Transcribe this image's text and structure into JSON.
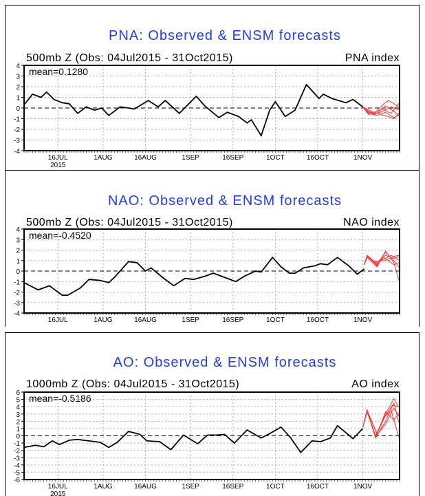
{
  "chart_data": [
    {
      "type": "line",
      "title": "PNA: Observed & ENSM forecasts",
      "subtitle": "500mb Z (Obs: 04Jul2015 - 31Oct2015)",
      "index_label": "PNA index",
      "mean_label": "mean=0.1280",
      "ylim": [
        -4,
        4
      ],
      "yticks": [
        4,
        3,
        2,
        1,
        0,
        -1,
        -2,
        -3,
        -4
      ],
      "x_start": "04Jul2015",
      "xlim_days": [
        0,
        133
      ],
      "xticks": [
        {
          "day": 12,
          "label": "16JUL"
        },
        {
          "day": 28,
          "label": "1AUG"
        },
        {
          "day": 43,
          "label": "16AUG"
        },
        {
          "day": 59,
          "label": "1SEP"
        },
        {
          "day": 74,
          "label": "16SEP"
        },
        {
          "day": 89,
          "label": "1OCT"
        },
        {
          "day": 104,
          "label": "16OCT"
        },
        {
          "day": 120,
          "label": "1NOV"
        }
      ],
      "year_label": "2015",
      "grid": true,
      "observed": [
        [
          0,
          0.3
        ],
        [
          3,
          1.3
        ],
        [
          6,
          1.0
        ],
        [
          8,
          1.5
        ],
        [
          10.6,
          0.8
        ],
        [
          13.5,
          0.5
        ],
        [
          16,
          0.4
        ],
        [
          19,
          -0.5
        ],
        [
          22,
          0.1
        ],
        [
          25,
          -0.2
        ],
        [
          27.5,
          0
        ],
        [
          30,
          -0.7
        ],
        [
          34,
          0.1
        ],
        [
          37,
          0
        ],
        [
          39,
          -0.1
        ],
        [
          44,
          0.7
        ],
        [
          47.5,
          0.1
        ],
        [
          50,
          0.7
        ],
        [
          55,
          -0.5
        ],
        [
          61,
          1.1
        ],
        [
          64,
          0.2
        ],
        [
          69,
          -0.9
        ],
        [
          72,
          -0.4
        ],
        [
          76,
          -0.8
        ],
        [
          79,
          -1.4
        ],
        [
          80.5,
          -1.1
        ],
        [
          84,
          -2.6
        ],
        [
          87,
          -0.2
        ],
        [
          89,
          0.6
        ],
        [
          92.5,
          -0.8
        ],
        [
          96,
          -0.2
        ],
        [
          100,
          2.2
        ],
        [
          104.5,
          0.9
        ],
        [
          106,
          1.3
        ],
        [
          109,
          0.9
        ],
        [
          114,
          0.5
        ],
        [
          116.5,
          0.8
        ],
        [
          120,
          0.1
        ]
      ],
      "ensemble": [
        [
          [
            120,
            0.1
          ],
          [
            122,
            -0.4
          ],
          [
            124,
            -0.6
          ],
          [
            127,
            -0.3
          ],
          [
            130,
            0.1
          ],
          [
            133,
            -0.2
          ]
        ],
        [
          [
            120,
            0.1
          ],
          [
            122,
            -0.3
          ],
          [
            124,
            -0.5
          ],
          [
            127,
            0.3
          ],
          [
            129,
            0.7
          ],
          [
            133,
            0.1
          ]
        ],
        [
          [
            120,
            0.1
          ],
          [
            122,
            -0.5
          ],
          [
            125,
            -0.7
          ],
          [
            128,
            -0.4
          ],
          [
            131,
            -0.9
          ],
          [
            133,
            -0.6
          ]
        ],
        [
          [
            120,
            0.1
          ],
          [
            122,
            -0.4
          ],
          [
            124,
            -0.4
          ],
          [
            127,
            -0.1
          ],
          [
            130,
            -0.5
          ],
          [
            133,
            0.5
          ]
        ],
        [
          [
            120,
            0.1
          ],
          [
            122,
            -0.6
          ],
          [
            125,
            -0.5
          ],
          [
            128,
            0.2
          ],
          [
            131,
            -0.3
          ],
          [
            133,
            -0.8
          ]
        ],
        [
          [
            120,
            0.1
          ],
          [
            123,
            -0.3
          ],
          [
            126,
            -0.6
          ],
          [
            129,
            -0.8
          ],
          [
            131,
            -1.0
          ],
          [
            133,
            -0.4
          ]
        ]
      ]
    },
    {
      "type": "line",
      "title": "NAO: Observed & ENSM forecasts",
      "subtitle": "500mb Z (Obs: 04Jul2015 - 31Oct2015)",
      "index_label": "NAO index",
      "mean_label": "mean=-0.4520",
      "ylim": [
        -4,
        4
      ],
      "yticks": [
        4,
        3,
        2,
        1,
        0,
        -1,
        -2,
        -3,
        -4
      ],
      "x_start": "04Jul2015",
      "xlim_days": [
        0,
        133
      ],
      "xticks": [
        {
          "day": 12,
          "label": "16JUL"
        },
        {
          "day": 28,
          "label": "1AUG"
        },
        {
          "day": 43,
          "label": "16AUG"
        },
        {
          "day": 59,
          "label": "1SEP"
        },
        {
          "day": 74,
          "label": "16SEP"
        },
        {
          "day": 89,
          "label": "1OCT"
        },
        {
          "day": 104,
          "label": "16OCT"
        },
        {
          "day": 120,
          "label": "1NOV"
        }
      ],
      "grid": true,
      "observed": [
        [
          0,
          -1.1
        ],
        [
          5,
          -1.8
        ],
        [
          9,
          -1.4
        ],
        [
          13.5,
          -2.3
        ],
        [
          15.5,
          -2.3
        ],
        [
          20,
          -1.6
        ],
        [
          23,
          -0.8
        ],
        [
          27,
          -0.9
        ],
        [
          30,
          -1.1
        ],
        [
          32,
          -0.6
        ],
        [
          37,
          0.9
        ],
        [
          40,
          0.8
        ],
        [
          43,
          0
        ],
        [
          45,
          0.3
        ],
        [
          49,
          -0.6
        ],
        [
          53,
          -1.4
        ],
        [
          57,
          -0.7
        ],
        [
          60,
          -0.8
        ],
        [
          64,
          -0.5
        ],
        [
          67,
          -0.2
        ],
        [
          70,
          -0.5
        ],
        [
          75,
          -1.0
        ],
        [
          78,
          -0.5
        ],
        [
          82,
          0
        ],
        [
          84,
          -0.1
        ],
        [
          88,
          1.3
        ],
        [
          91,
          0.4
        ],
        [
          94,
          -0.2
        ],
        [
          96,
          -0.2
        ],
        [
          99,
          0.3
        ],
        [
          103,
          0.5
        ],
        [
          105,
          0.7
        ],
        [
          107.5,
          0.6
        ],
        [
          111,
          1.3
        ],
        [
          115,
          0.5
        ],
        [
          118,
          -0.3
        ],
        [
          120.5,
          0.2
        ]
      ],
      "ensemble": [
        [
          [
            120.5,
            0.6
          ],
          [
            121.5,
            1.5
          ],
          [
            125,
            0.5
          ],
          [
            128,
            1.8
          ],
          [
            131,
            1.0
          ],
          [
            133,
            0.3
          ]
        ],
        [
          [
            120.5,
            0.6
          ],
          [
            121.5,
            1.4
          ],
          [
            125,
            0.6
          ],
          [
            128,
            1.5
          ],
          [
            131,
            1.2
          ],
          [
            133,
            1.4
          ]
        ],
        [
          [
            120.5,
            0.6
          ],
          [
            121.5,
            1.5
          ],
          [
            124.5,
            0.8
          ],
          [
            128,
            1.2
          ],
          [
            130,
            1.5
          ],
          [
            133,
            1.0
          ]
        ],
        [
          [
            120.5,
            0.6
          ],
          [
            121.5,
            1.3
          ],
          [
            125,
            0.4
          ],
          [
            128,
            1.9
          ],
          [
            131,
            0.8
          ],
          [
            133,
            -1.1
          ]
        ],
        [
          [
            120.5,
            0.6
          ],
          [
            121.5,
            1.5
          ],
          [
            125,
            0.7
          ],
          [
            127,
            1.4
          ],
          [
            131,
            0.6
          ],
          [
            133,
            0.8
          ]
        ],
        [
          [
            120.5,
            0.6
          ],
          [
            121.5,
            1.4
          ],
          [
            124,
            0.9
          ],
          [
            128,
            1.0
          ],
          [
            131,
            1.4
          ],
          [
            133,
            1.5
          ]
        ]
      ]
    },
    {
      "type": "line",
      "title": "AO: Observed & ENSM forecasts",
      "subtitle": "1000mb Z (Obs: 04Jul2015 - 31Oct2015)",
      "index_label": "AO index",
      "mean_label": "mean=-0.5186",
      "ylim": [
        -6,
        6
      ],
      "yticks": [
        6,
        5,
        4,
        3,
        2,
        1,
        0,
        -1,
        -2,
        -3,
        -4,
        -5,
        -6
      ],
      "x_start": "04Jul2015",
      "xlim_days": [
        0,
        133
      ],
      "xticks": [
        {
          "day": 12,
          "label": "16JUL"
        },
        {
          "day": 28,
          "label": "1AUG"
        },
        {
          "day": 43,
          "label": "16AUG"
        },
        {
          "day": 59,
          "label": "1SEP"
        },
        {
          "day": 74,
          "label": "16SEP"
        },
        {
          "day": 89,
          "label": "1OCT"
        },
        {
          "day": 104,
          "label": "16OCT"
        },
        {
          "day": 120,
          "label": "1NOV"
        }
      ],
      "year_label": "2015",
      "grid": true,
      "observed": [
        [
          0,
          -1.6
        ],
        [
          4,
          -1.3
        ],
        [
          7,
          -1.5
        ],
        [
          10,
          -0.7
        ],
        [
          12.5,
          -1.2
        ],
        [
          16,
          -0.6
        ],
        [
          19,
          -0.5
        ],
        [
          23,
          -0.7
        ],
        [
          27,
          -0.9
        ],
        [
          30,
          -1.6
        ],
        [
          33,
          -0.9
        ],
        [
          37,
          0.6
        ],
        [
          41,
          0.2
        ],
        [
          43.5,
          -0.7
        ],
        [
          48,
          -0.8
        ],
        [
          52,
          -1.9
        ],
        [
          56.5,
          0.1
        ],
        [
          61.5,
          -1.1
        ],
        [
          65,
          0.1
        ],
        [
          68.5,
          0.1
        ],
        [
          71,
          0.2
        ],
        [
          74.5,
          -1.0
        ],
        [
          79,
          0.8
        ],
        [
          84,
          -0.3
        ],
        [
          87,
          0.3
        ],
        [
          91,
          1.2
        ],
        [
          94.5,
          -0.3
        ],
        [
          98,
          -2.3
        ],
        [
          102,
          -0.7
        ],
        [
          105,
          -0.8
        ],
        [
          108.5,
          -0.3
        ],
        [
          111,
          1.4
        ],
        [
          116.5,
          -0.4
        ],
        [
          120,
          1.0
        ]
      ],
      "ensemble": [
        [
          [
            120,
            1.2
          ],
          [
            121.5,
            3.5
          ],
          [
            124.5,
            -0.3
          ],
          [
            128,
            2.0
          ],
          [
            131,
            4.5
          ],
          [
            133,
            1.5
          ]
        ],
        [
          [
            120,
            1.2
          ],
          [
            121.5,
            3.4
          ],
          [
            124.5,
            0.0
          ],
          [
            128,
            3.0
          ],
          [
            131,
            5.1
          ],
          [
            133,
            3.8
          ]
        ],
        [
          [
            120,
            1.2
          ],
          [
            121.5,
            3.6
          ],
          [
            124.5,
            -0.2
          ],
          [
            127.5,
            2.5
          ],
          [
            130,
            3.5
          ],
          [
            133,
            -0.5
          ]
        ],
        [
          [
            120,
            1.2
          ],
          [
            121.5,
            3.5
          ],
          [
            125,
            0.2
          ],
          [
            128,
            3.3
          ],
          [
            131,
            2.2
          ],
          [
            133,
            3.2
          ]
        ],
        [
          [
            120,
            1.2
          ],
          [
            121.5,
            3.3
          ],
          [
            124.5,
            -0.1
          ],
          [
            128,
            1.6
          ],
          [
            131,
            3.8
          ],
          [
            133,
            2.6
          ]
        ],
        [
          [
            120,
            1.2
          ],
          [
            121.5,
            3.5
          ],
          [
            125,
            0.3
          ],
          [
            128,
            2.8
          ],
          [
            130.5,
            4.2
          ],
          [
            133,
            4.0
          ]
        ]
      ]
    }
  ],
  "colors": {
    "title": "#1f3cff",
    "observed": "#000000",
    "ensemble": "#ff3333",
    "grid": "#aaaaaa"
  }
}
